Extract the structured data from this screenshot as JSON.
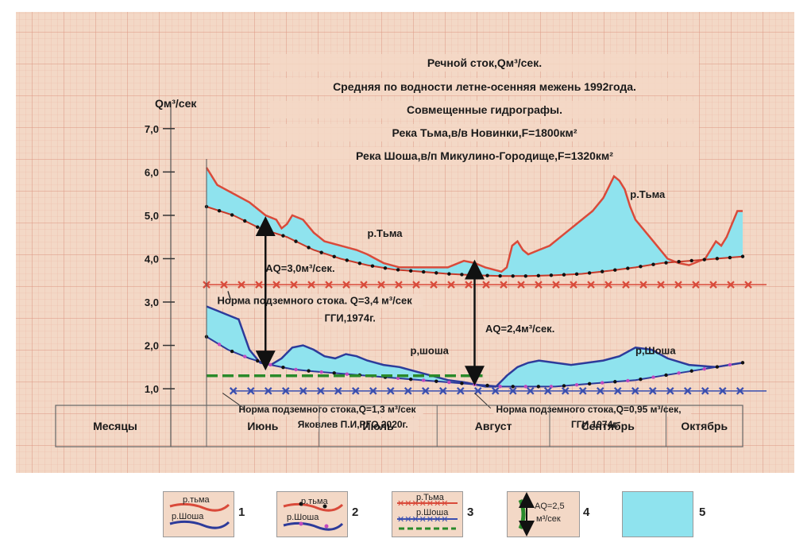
{
  "chart_data": {
    "type": "line",
    "title_lines": [
      "Речной сток,Qм³/сек.",
      "Средняя по водности  летне-осенняя межень 1992года.",
      "Совмещенные  гидрографы.",
      "Река Тьма,в/в Новинки,F=1800км²",
      "Река Шоша,в/п Микулино-Городище,F=1320км²"
    ],
    "ylabel": "Qм³/сек",
    "ylim": [
      0.8,
      7.4
    ],
    "yticks": [
      "1,0",
      "2,0",
      "3,0",
      "4,0",
      "5,0",
      "6,0",
      "7,0"
    ],
    "ytick_values": [
      1,
      2,
      3,
      4,
      5,
      6,
      7
    ],
    "x_range": [
      0,
      1
    ],
    "months_header": "Месяцы",
    "months": [
      "Июнь",
      "Июль",
      "Август",
      "Сентябрь",
      "Октябрь"
    ],
    "month_bounds": [
      0,
      0.21,
      0.43,
      0.64,
      0.857,
      1
    ],
    "series": [
      {
        "name": "р.Тьма",
        "role": "hydrograph",
        "color": "#d94a3a",
        "x": [
          0,
          0.02,
          0.05,
          0.08,
          0.11,
          0.13,
          0.14,
          0.15,
          0.16,
          0.18,
          0.2,
          0.22,
          0.25,
          0.28,
          0.3,
          0.33,
          0.36,
          0.39,
          0.42,
          0.45,
          0.48,
          0.5,
          0.52,
          0.55,
          0.56,
          0.57,
          0.58,
          0.59,
          0.6,
          0.62,
          0.64,
          0.66,
          0.68,
          0.7,
          0.72,
          0.74,
          0.76,
          0.77,
          0.78,
          0.79,
          0.8,
          0.82,
          0.84,
          0.86,
          0.88,
          0.9,
          0.93,
          0.95,
          0.96,
          0.97,
          0.98,
          0.99,
          1.0
        ],
        "values": [
          6.1,
          5.7,
          5.5,
          5.3,
          5.0,
          4.9,
          4.7,
          4.8,
          5.0,
          4.9,
          4.6,
          4.4,
          4.3,
          4.2,
          4.1,
          3.9,
          3.8,
          3.8,
          3.8,
          3.8,
          3.95,
          3.9,
          3.8,
          3.7,
          3.8,
          4.3,
          4.4,
          4.2,
          4.1,
          4.2,
          4.3,
          4.5,
          4.7,
          4.9,
          5.1,
          5.4,
          5.9,
          5.8,
          5.6,
          5.2,
          4.9,
          4.6,
          4.3,
          4.0,
          3.9,
          3.85,
          4.0,
          4.4,
          4.3,
          4.5,
          4.8,
          5.1,
          5.1
        ]
      },
      {
        "name": "р.Тьма",
        "role": "baseflow",
        "color": "#c63a2a",
        "x": [
          0,
          0.05,
          0.1,
          0.15,
          0.2,
          0.25,
          0.3,
          0.35,
          0.4,
          0.45,
          0.5,
          0.55,
          0.6,
          0.65,
          0.7,
          0.75,
          0.8,
          0.85,
          0.9,
          0.95,
          1.0
        ],
        "values": [
          5.2,
          5.0,
          4.7,
          4.5,
          4.2,
          4.0,
          3.85,
          3.75,
          3.7,
          3.65,
          3.62,
          3.6,
          3.6,
          3.62,
          3.65,
          3.72,
          3.8,
          3.9,
          3.95,
          4.0,
          4.05
        ]
      },
      {
        "name": "р.Шоша",
        "role": "hydrograph",
        "color": "#2d3b9a",
        "x": [
          0,
          0.02,
          0.04,
          0.06,
          0.08,
          0.1,
          0.12,
          0.14,
          0.16,
          0.18,
          0.2,
          0.22,
          0.24,
          0.26,
          0.28,
          0.3,
          0.33,
          0.36,
          0.39,
          0.42,
          0.45,
          0.48,
          0.5,
          0.52,
          0.54,
          0.56,
          0.58,
          0.6,
          0.62,
          0.65,
          0.68,
          0.71,
          0.74,
          0.77,
          0.8,
          0.83,
          0.86,
          0.9,
          0.95,
          1.0
        ],
        "values": [
          2.9,
          2.8,
          2.7,
          2.6,
          1.9,
          1.6,
          1.55,
          1.7,
          1.95,
          2.0,
          1.9,
          1.75,
          1.7,
          1.8,
          1.75,
          1.65,
          1.55,
          1.5,
          1.4,
          1.3,
          1.2,
          1.15,
          1.1,
          1.05,
          1.05,
          1.3,
          1.5,
          1.6,
          1.65,
          1.6,
          1.55,
          1.6,
          1.65,
          1.75,
          1.95,
          1.9,
          1.7,
          1.55,
          1.5,
          1.6
        ]
      },
      {
        "name": "р.Шоша",
        "role": "baseflow",
        "color": "#2d3b9a",
        "x": [
          0,
          0.04,
          0.08,
          0.12,
          0.16,
          0.2,
          0.25,
          0.3,
          0.35,
          0.4,
          0.45,
          0.5,
          0.55,
          0.6,
          0.65,
          0.7,
          0.75,
          0.8,
          0.85,
          0.9,
          0.95,
          1.0
        ],
        "values": [
          2.2,
          1.9,
          1.7,
          1.55,
          1.45,
          1.4,
          1.35,
          1.3,
          1.25,
          1.2,
          1.15,
          1.1,
          1.05,
          1.05,
          1.05,
          1.1,
          1.15,
          1.2,
          1.3,
          1.4,
          1.5,
          1.6
        ]
      },
      {
        "name": "",
        "role": "norm",
        "color": "#d94a3a",
        "x": [
          0,
          1
        ],
        "values": [
          3.4,
          3.4
        ]
      },
      {
        "name": "",
        "role": "norm",
        "color": "#3a4fb0",
        "x": [
          0.05,
          1
        ],
        "values": [
          0.95,
          0.95
        ]
      },
      {
        "name": "",
        "role": "norm-dashed",
        "color": "#2a8a2a",
        "x": [
          0,
          0.5
        ],
        "values": [
          1.3,
          1.3
        ]
      }
    ],
    "annotations": [
      {
        "text": "р.Тьма",
        "x": 0.3,
        "y": 4.5
      },
      {
        "text": "р.Тьма",
        "x": 0.79,
        "y": 5.4
      },
      {
        "text": "р,шоша",
        "x": 0.38,
        "y": 1.8
      },
      {
        "text": "р,Шоша",
        "x": 0.8,
        "y": 1.8
      },
      {
        "text": "AQ=3,0м³/сек.",
        "x": 0.11,
        "y": 3.7
      },
      {
        "text": "AQ=2,4м³/сек.",
        "x": 0.52,
        "y": 2.3
      },
      {
        "text": "Норма подземного стока. Q=3,4 м³/сек",
        "x": 0.02,
        "y": 2.95
      },
      {
        "text": "ГГИ,1974г.",
        "x": 0.22,
        "y": 2.55
      },
      {
        "text": "Норма подземного стока,Q=1,3 м³/сек",
        "x": 0.06,
        "y": 0.45
      },
      {
        "text": "Яковлев  П.И,РГО,2020г.",
        "x": 0.17,
        "y": 0.1
      },
      {
        "text": "Норма подземного стока,Q=0,95 м³/сек,",
        "x": 0.54,
        "y": 0.45
      },
      {
        "text": "ГГИ,1974г.",
        "x": 0.68,
        "y": 0.1
      }
    ],
    "arrows": [
      {
        "x": 0.11,
        "from": 4.75,
        "to": 1.65
      },
      {
        "x": 0.5,
        "from": 3.75,
        "to": 1.3
      }
    ],
    "grid": true,
    "colors": {
      "fill": "#8fe3ee",
      "paper": "#f3d8c6",
      "grid_minor": "#eab19e",
      "grid_major": "#d98e78"
    }
  },
  "legend": [
    {
      "num": "1",
      "labels": [
        "р.тьма",
        "р.Шоша"
      ]
    },
    {
      "num": "2",
      "labels": [
        "р.тьма",
        "р.Шоша"
      ]
    },
    {
      "num": "3",
      "labels": [
        "р.Тьма",
        "р.Шоша"
      ]
    },
    {
      "num": "4",
      "labels": [
        "AQ=2,5",
        "м³/сек"
      ]
    },
    {
      "num": "5",
      "labels": []
    }
  ]
}
